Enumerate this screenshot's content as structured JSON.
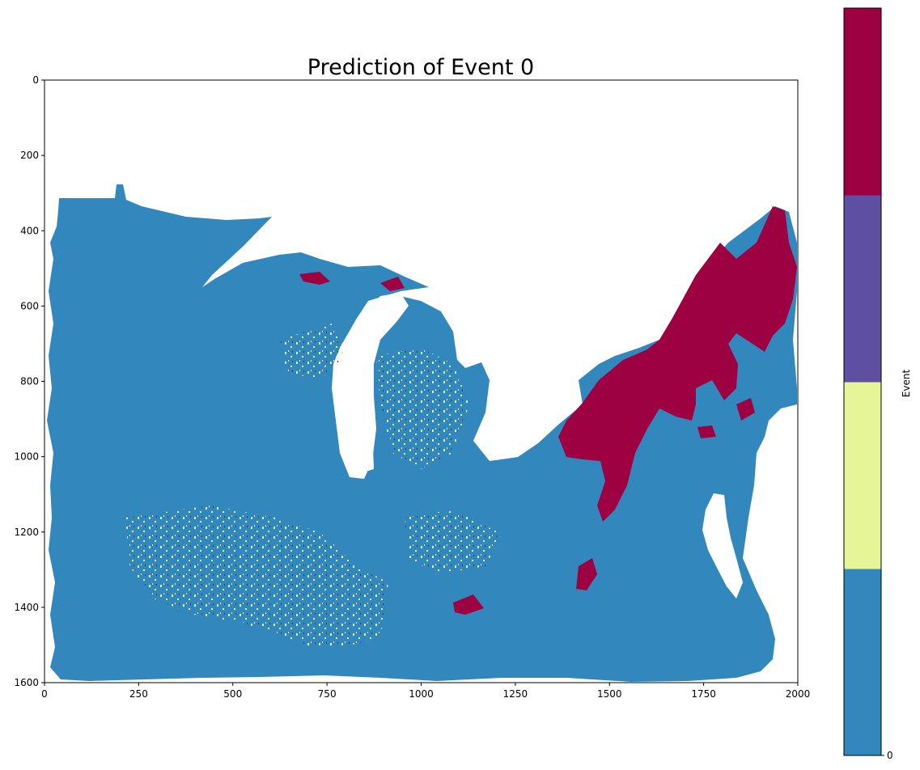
{
  "chart_data": {
    "type": "heatmap",
    "title": "Prediction of Event 0",
    "xlabel": "",
    "ylabel": "",
    "xlim": [
      0,
      2000
    ],
    "ylim": [
      1600,
      0
    ],
    "x_ticks": [
      "0",
      "250",
      "500",
      "750",
      "1000",
      "1250",
      "1500",
      "1750",
      "2000"
    ],
    "y_ticks": [
      "0",
      "200",
      "400",
      "600",
      "800",
      "1000",
      "1200",
      "1400",
      "1600"
    ],
    "grid": false,
    "colorbar": {
      "label": "Event",
      "tick_labels": [
        "0"
      ],
      "colors": [
        "#3288bd",
        "#e6f598",
        "#5e4fa2",
        "#9e0142"
      ]
    }
  }
}
